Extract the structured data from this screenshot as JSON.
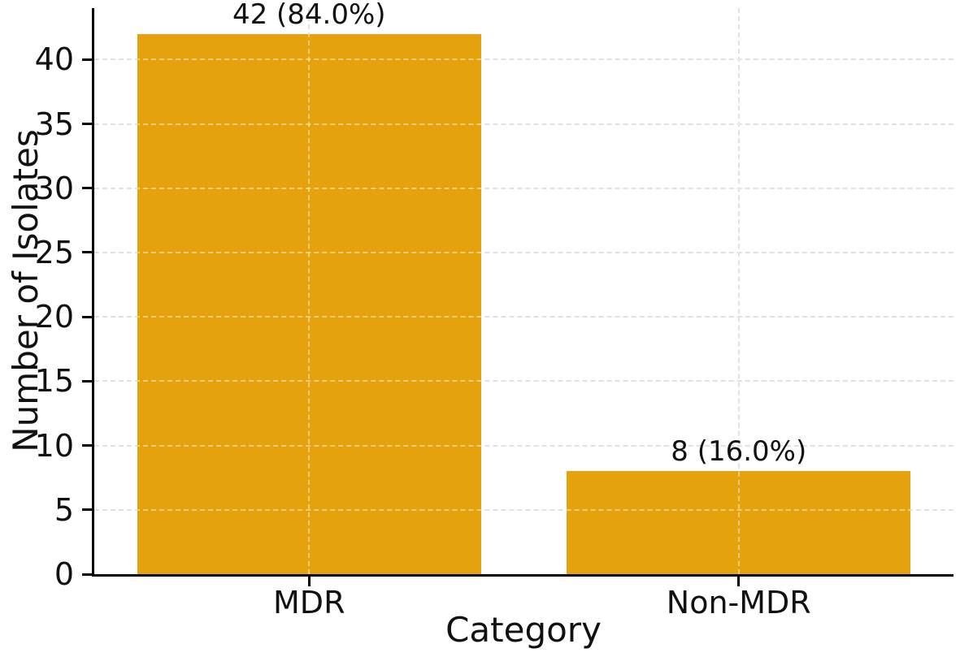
{
  "figure": {
    "background": "#ffffff"
  },
  "chart_data": {
    "type": "bar",
    "categories": [
      "MDR",
      "Non-MDR"
    ],
    "values": [
      42,
      8
    ],
    "annotations": [
      "42 (84.0%)",
      "8 (16.0%)"
    ],
    "title": "",
    "xlabel": "Category",
    "ylabel": "Number of Isolates",
    "ylim": [
      0,
      44
    ],
    "yticks": [
      0,
      5,
      10,
      15,
      20,
      25,
      30,
      35,
      40
    ],
    "bar_color": "#E5A20C",
    "bar_width_fraction": 0.8,
    "grid": {
      "style": "dashed",
      "color": "#c9c9c9",
      "overlay_color": "rgba(255,255,255,0.45)",
      "horizontal": true,
      "vertical": true
    },
    "axis_color": "#000000",
    "text_color": "#111111",
    "legend": null
  }
}
